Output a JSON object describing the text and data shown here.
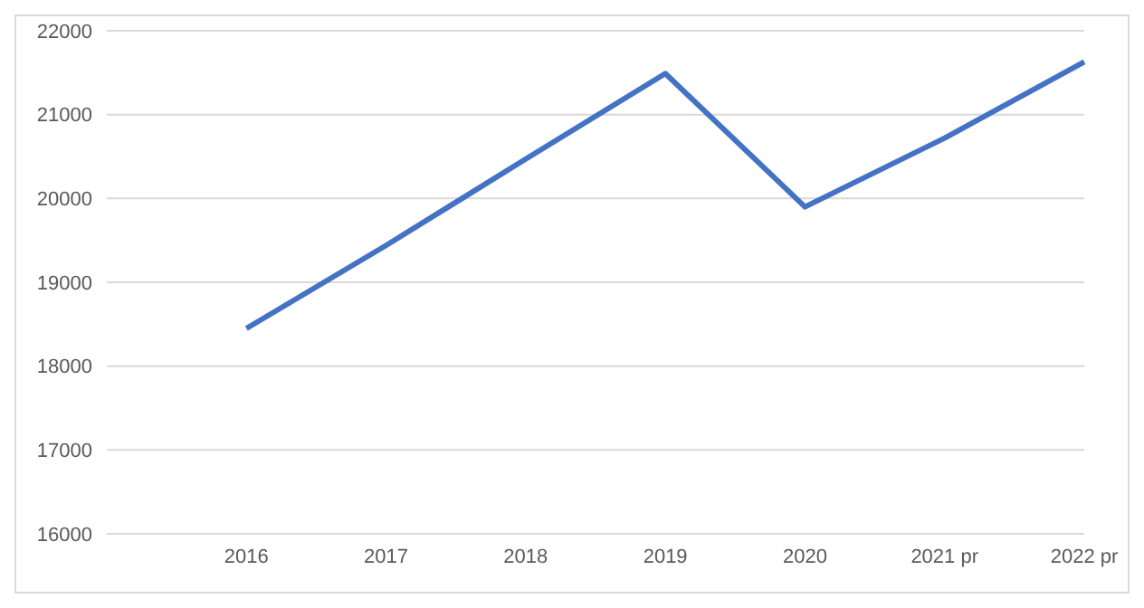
{
  "chart_data": {
    "type": "line",
    "categories": [
      null,
      "2016",
      "2017",
      "2018",
      "2019",
      "2020",
      "2021 pr",
      "2022 pr"
    ],
    "series": [
      {
        "color": "#4472c4",
        "values": [
          null,
          18450,
          19440,
          20470,
          21490,
          19900,
          20720,
          21630
        ]
      }
    ],
    "ylim": [
      16000,
      22000
    ],
    "yticks": [
      16000,
      17000,
      18000,
      19000,
      20000,
      21000,
      22000
    ],
    "grid": "y",
    "legend": false,
    "marker": "none"
  }
}
